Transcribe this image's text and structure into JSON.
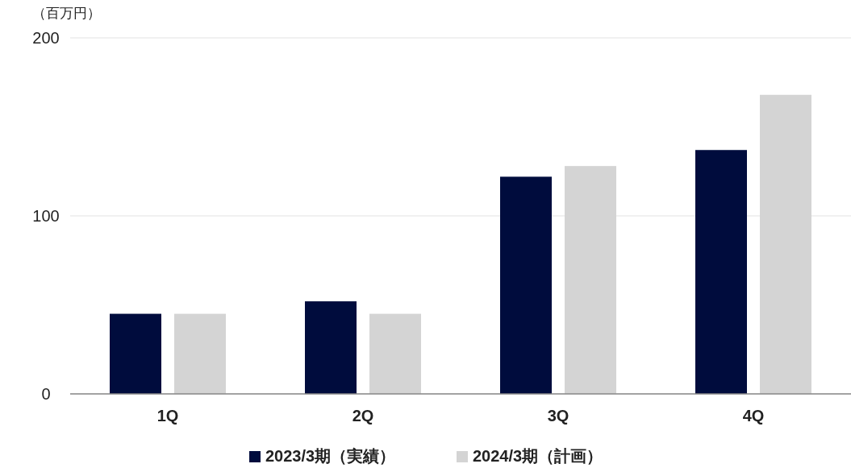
{
  "chart_data": {
    "type": "bar",
    "ylabel": "（百万円）",
    "categories": [
      "1Q",
      "2Q",
      "3Q",
      "4Q"
    ],
    "series": [
      {
        "name": "2023/3期（実績）",
        "color": "#000c3d",
        "values": [
          45,
          52,
          122,
          137
        ]
      },
      {
        "name": "2024/3期（計画）",
        "color": "#d4d4d4",
        "values": [
          45,
          45,
          128,
          168
        ]
      }
    ],
    "ylim": [
      0,
      200
    ],
    "yticks": [
      0,
      100,
      200
    ],
    "grid": "y",
    "legend": "bottom"
  }
}
